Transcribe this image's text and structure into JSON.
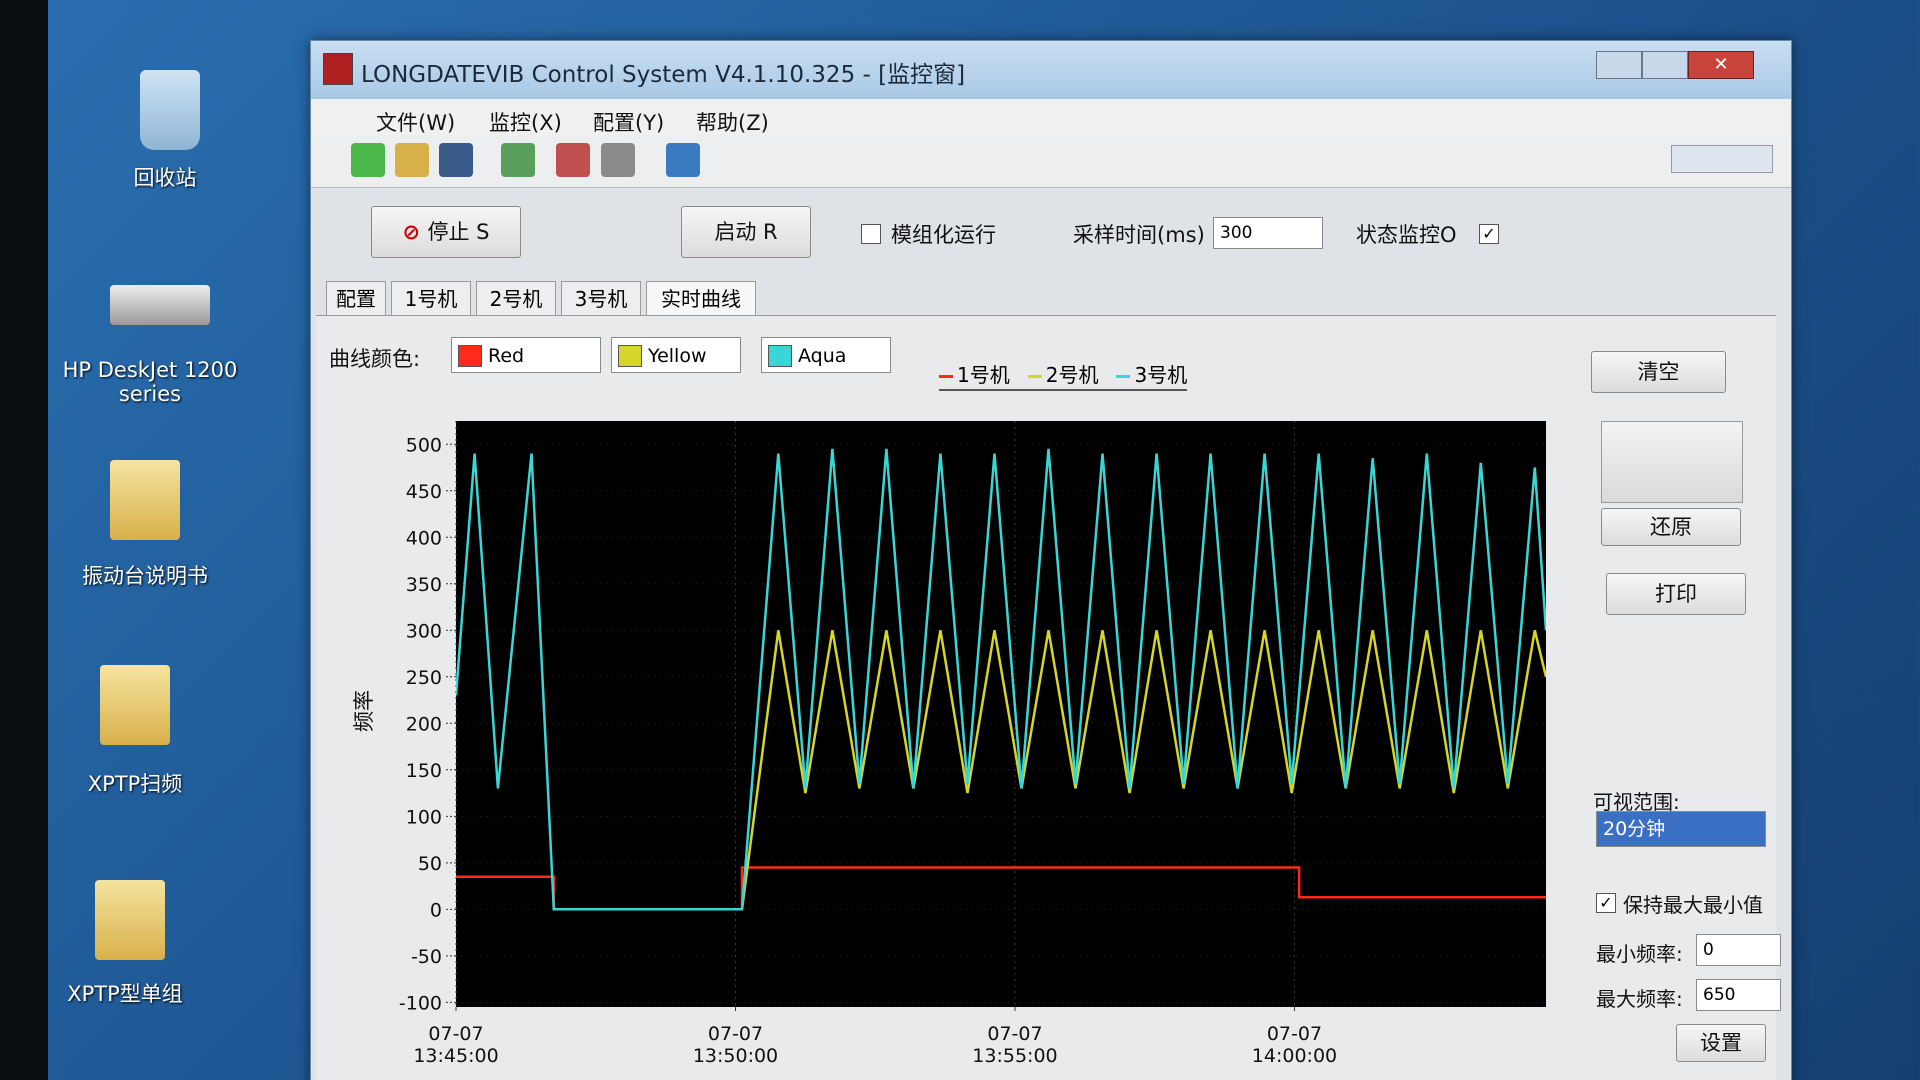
{
  "desktop": {
    "icons": [
      "回收站",
      "HP DeskJet 1200 series",
      "振动台说明书",
      "XPTP扫频",
      "XPTP型单组"
    ]
  },
  "window": {
    "title": "LONGDATEVIB Control System V4.1.10.325 - [监控窗]",
    "menu": [
      "文件(W)",
      "监控(X)",
      "配置(Y)",
      "帮助(Z)"
    ]
  },
  "controls": {
    "stop": "停止 S",
    "start": "启动 R",
    "modular": "模组化运行",
    "sample_label": "采样时间(ms)",
    "sample_value": 300,
    "monitor": "状态监控O"
  },
  "tabs": [
    "配置",
    "1号机",
    "2号机",
    "3号机",
    "实时曲线"
  ],
  "color_label": "曲线颜色:",
  "color_options": [
    "Red",
    "Yellow",
    "Aqua"
  ],
  "side": {
    "clear": "清空",
    "restore": "还原",
    "print": "打印",
    "range_label": "可视范围:",
    "range_value": "20分钟",
    "keep": "保持最大最小值",
    "min_label": "最小频率:",
    "min_value": 0,
    "max_label": "最大频率:",
    "max_value": 650,
    "set": "设置"
  },
  "chart_data": {
    "type": "line",
    "y_label": "频率",
    "grid": true,
    "xlim": [
      "13:45:00",
      "14:04:30"
    ],
    "xticks": [
      {
        "value": "13:45:00",
        "label": "07-07\n13:45:00"
      },
      {
        "value": "13:50:00",
        "label": "07-07\n13:50:00"
      },
      {
        "value": "13:55:00",
        "label": "07-07\n13:55:00"
      },
      {
        "value": "14:00:00",
        "label": "07-07\n14:00:00"
      }
    ],
    "ylim": [
      -105,
      525
    ],
    "yticks": [
      -100,
      -50,
      0,
      50,
      100,
      150,
      200,
      250,
      300,
      350,
      400,
      450,
      500
    ],
    "series": [
      {
        "name": "1号机",
        "color": "#ff2a1a",
        "x": [
          "13:45:00",
          "13:46:45",
          "13:46:45",
          "13:50:07",
          "13:50:07",
          "14:00:05",
          "14:00:05",
          "14:04:30"
        ],
        "values": [
          35,
          35,
          0,
          0,
          45,
          45,
          13,
          13
        ]
      },
      {
        "name": "2号机",
        "color": "#d6d62a",
        "x": [
          "13:50:07",
          "13:50:46",
          "13:51:15",
          "13:51:44",
          "13:52:13",
          "13:52:42",
          "13:53:11",
          "13:53:40",
          "13:54:09",
          "13:54:38",
          "13:55:07",
          "13:55:36",
          "13:56:05",
          "13:56:34",
          "13:57:03",
          "13:57:32",
          "13:58:01",
          "13:58:30",
          "13:58:59",
          "13:59:28",
          "13:59:57",
          "14:00:26",
          "14:00:55",
          "14:01:24",
          "14:01:53",
          "14:02:22",
          "14:02:51",
          "14:03:20",
          "14:03:49",
          "14:04:18",
          "14:04:30"
        ],
        "values": [
          0,
          300,
          125,
          300,
          130,
          300,
          130,
          300,
          125,
          300,
          130,
          300,
          130,
          300,
          125,
          300,
          130,
          300,
          130,
          300,
          125,
          300,
          130,
          300,
          130,
          300,
          125,
          300,
          130,
          300,
          250
        ]
      },
      {
        "name": "3号机",
        "color": "#3ad6d6",
        "x": [
          "13:45:00",
          "13:45:20",
          "13:45:45",
          "13:46:21",
          "13:46:45",
          "13:50:07",
          "13:50:46",
          "13:51:15",
          "13:51:44",
          "13:52:13",
          "13:52:42",
          "13:53:11",
          "13:53:40",
          "13:54:09",
          "13:54:38",
          "13:55:07",
          "13:55:36",
          "13:56:05",
          "13:56:34",
          "13:57:03",
          "13:57:32",
          "13:58:01",
          "13:58:30",
          "13:58:59",
          "13:59:28",
          "13:59:57",
          "14:00:26",
          "14:00:55",
          "14:01:24",
          "14:01:53",
          "14:02:22",
          "14:02:51",
          "14:03:20",
          "14:03:49",
          "14:04:18",
          "14:04:30"
        ],
        "values": [
          230,
          490,
          130,
          490,
          0,
          0,
          490,
          130,
          495,
          135,
          495,
          130,
          490,
          135,
          490,
          130,
          495,
          135,
          490,
          130,
          490,
          135,
          490,
          130,
          490,
          135,
          490,
          130,
          485,
          135,
          490,
          130,
          480,
          135,
          475,
          300
        ]
      }
    ]
  }
}
